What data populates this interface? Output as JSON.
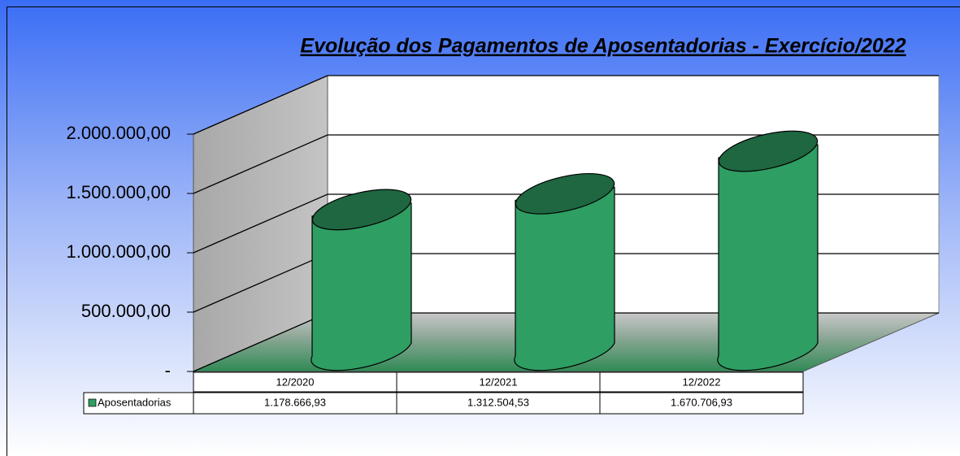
{
  "chart_data": {
    "type": "bar",
    "title": "Evolução dos Pagamentos de Aposentadorias - Exercício/2022",
    "categories": [
      "12/2020",
      "12/2021",
      "12/2022"
    ],
    "series": [
      {
        "name": "Aposentadorias",
        "color": "#2e9e63",
        "values": [
          1178666.93,
          1312504.53,
          1670706.93
        ],
        "value_labels": [
          "1.178.666,93",
          "1.312.504,53",
          "1.670.706,93"
        ]
      }
    ],
    "ylim": [
      0,
      2000000
    ],
    "yticks": [
      {
        "value": 0,
        "label": "-"
      },
      {
        "value": 500000,
        "label": "500.000,00"
      },
      {
        "value": 1000000,
        "label": "1.000.000,00"
      },
      {
        "value": 1500000,
        "label": "1.500.000,00"
      },
      {
        "value": 2000000,
        "label": "2.000.000,00"
      }
    ],
    "grid": true
  }
}
